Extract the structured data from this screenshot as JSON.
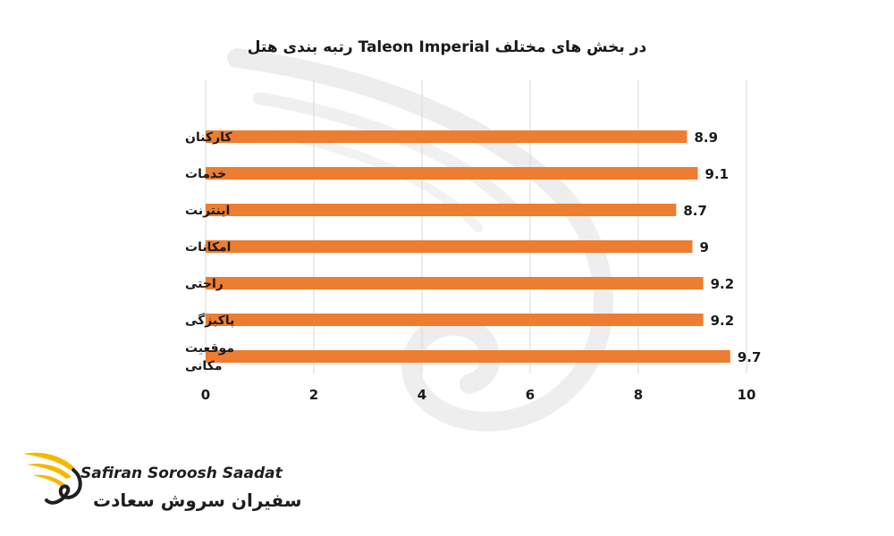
{
  "chart_data": {
    "type": "bar",
    "orientation": "horizontal",
    "title": "رتبه بندی هتل Taleon Imperial در بخش های مختلف",
    "categories": [
      "کارکنان",
      "خدمات",
      "اینترنت",
      "امکانات",
      "راحتی",
      "پاکیزگی",
      "موقعیت مکانی"
    ],
    "values": [
      8.9,
      9.1,
      8.7,
      9,
      9.2,
      9.2,
      9.7
    ],
    "value_labels": [
      "8.9",
      "9.1",
      "8.7",
      "9",
      "9.2",
      "9.2",
      "9.7"
    ],
    "xlim": [
      0,
      10
    ],
    "xticks": [
      "0",
      "2",
      "4",
      "6",
      "8",
      "10"
    ],
    "grid": true,
    "bar_color": "#ed7d31"
  },
  "brand": {
    "name_en": "Safiran Soroosh Saadat",
    "name_fa": "سفیران سروش سعادت",
    "accent_color": "#f5b800"
  }
}
